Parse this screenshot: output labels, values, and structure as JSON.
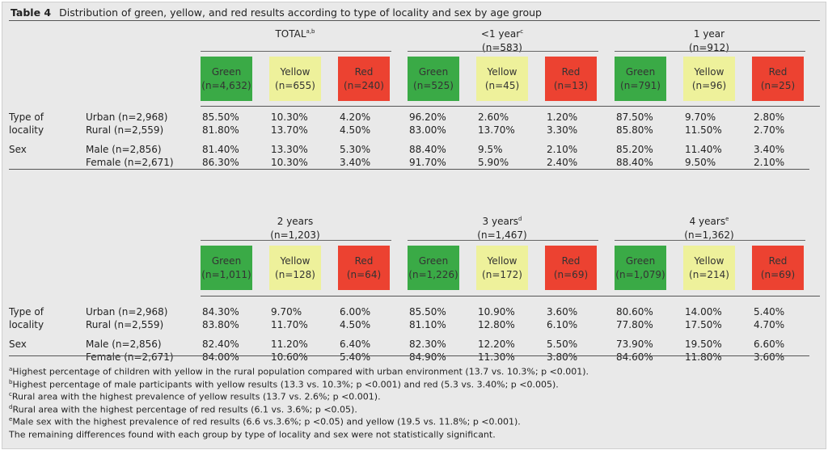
{
  "title": {
    "label": "Table 4",
    "text": "Distribution of green, yellow, and red results according to type of locality and sex by age group"
  },
  "colors": {
    "green": "#3aaa46",
    "yellow": "#eef19b",
    "red": "#ec4231"
  },
  "row_groups": [
    {
      "label": "Type of locality",
      "rows": [
        "Urban (n=2,968)",
        "Rural (n=2,559)"
      ]
    },
    {
      "label": "Sex",
      "rows": [
        "Male (n=2,856)",
        "Female (n=2,671)"
      ]
    }
  ],
  "blocks": [
    {
      "groups": [
        {
          "label": "TOTAL",
          "sup": "a,b",
          "n": "",
          "results": [
            {
              "name": "Green",
              "n": "(n=4,632)"
            },
            {
              "name": "Yellow",
              "n": "(n=655)"
            },
            {
              "name": "Red",
              "n": "(n=240)"
            }
          ],
          "values": [
            [
              "85.50%",
              "10.30%",
              "4.20%"
            ],
            [
              "81.80%",
              "13.70%",
              "4.50%"
            ],
            [
              "81.40%",
              "13.30%",
              "5.30%"
            ],
            [
              "86.30%",
              "10.30%",
              "3.40%"
            ]
          ]
        },
        {
          "label": "<1 year",
          "sup": "c",
          "n": "(n=583)",
          "results": [
            {
              "name": "Green",
              "n": "(n=525)"
            },
            {
              "name": "Yellow",
              "n": "(n=45)"
            },
            {
              "name": "Red",
              "n": "(n=13)"
            }
          ],
          "values": [
            [
              "96.20%",
              "2.60%",
              "1.20%"
            ],
            [
              "83.00%",
              "13.70%",
              "3.30%"
            ],
            [
              "88.40%",
              "9.5%",
              "2.10%"
            ],
            [
              "91.70%",
              "5.90%",
              "2.40%"
            ]
          ]
        },
        {
          "label": "1 year",
          "sup": "",
          "n": "(n=912)",
          "results": [
            {
              "name": "Green",
              "n": "(n=791)"
            },
            {
              "name": "Yellow",
              "n": "(n=96)"
            },
            {
              "name": "Red",
              "n": "(n=25)"
            }
          ],
          "values": [
            [
              "87.50%",
              "9.70%",
              "2.80%"
            ],
            [
              "85.80%",
              "11.50%",
              "2.70%"
            ],
            [
              "85.20%",
              "11.40%",
              "3.40%"
            ],
            [
              "88.40%",
              "9.50%",
              "2.10%"
            ]
          ]
        }
      ]
    },
    {
      "groups": [
        {
          "label": "2 years",
          "sup": "",
          "n": "(n=1,203)",
          "results": [
            {
              "name": "Green",
              "n": "(n=1,011)"
            },
            {
              "name": "Yellow",
              "n": "(n=128)"
            },
            {
              "name": "Red",
              "n": "(n=64)"
            }
          ],
          "values": [
            [
              "84.30%",
              "9.70%",
              "6.00%"
            ],
            [
              "83.80%",
              "11.70%",
              "4.50%"
            ],
            [
              "82.40%",
              "11.20%",
              "6.40%"
            ],
            [
              "84.00%",
              "10.60%",
              "5.40%"
            ]
          ]
        },
        {
          "label": "3 years",
          "sup": "d",
          "n": "(n=1,467)",
          "results": [
            {
              "name": "Green",
              "n": "(n=1,226)"
            },
            {
              "name": "Yellow",
              "n": "(n=172)"
            },
            {
              "name": "Red",
              "n": "(n=69)"
            }
          ],
          "values": [
            [
              "85.50%",
              "10.90%",
              "3.60%"
            ],
            [
              "81.10%",
              "12.80%",
              "6.10%"
            ],
            [
              "82.30%",
              "12.20%",
              "5.50%"
            ],
            [
              "84.90%",
              "11.30%",
              "3.80%"
            ]
          ]
        },
        {
          "label": "4 years",
          "sup": "e",
          "n": "(n=1,362)",
          "results": [
            {
              "name": "Green",
              "n": "(n=1,079)"
            },
            {
              "name": "Yellow",
              "n": "(n=214)"
            },
            {
              "name": "Red",
              "n": "(n=69)"
            }
          ],
          "values": [
            [
              "80.60%",
              "14.00%",
              "5.40%"
            ],
            [
              "77.80%",
              "17.50%",
              "4.70%"
            ],
            [
              "73.90%",
              "19.50%",
              "6.60%"
            ],
            [
              "84.60%",
              "11.80%",
              "3.60%"
            ]
          ]
        }
      ]
    }
  ],
  "footnotes": [
    {
      "mark": "a",
      "text": "Highest percentage of children with yellow in the rural population compared with urban environment (13.7 vs. 10.3%; p <0.001)."
    },
    {
      "mark": "b",
      "text": "Highest percentage of male participants with yellow results (13.3 vs. 10.3%; p <0.001) and red (5.3 vs. 3.40%; p <0.005)."
    },
    {
      "mark": "c",
      "text": "Rural area with the highest prevalence of yellow results (13.7 vs. 2.6%; p <0.001)."
    },
    {
      "mark": "d",
      "text": "Rural area with the highest percentage of red results (6.1 vs. 3.6%; p <0.05)."
    },
    {
      "mark": "e",
      "text": "Male sex with the highest prevalence of red results (6.6 vs.3.6%; p <0.05) and yellow (19.5 vs. 11.8%; p <0.001)."
    },
    {
      "mark": "",
      "text": "The remaining differences found with each group by type of locality and sex were not statistically significant."
    }
  ]
}
